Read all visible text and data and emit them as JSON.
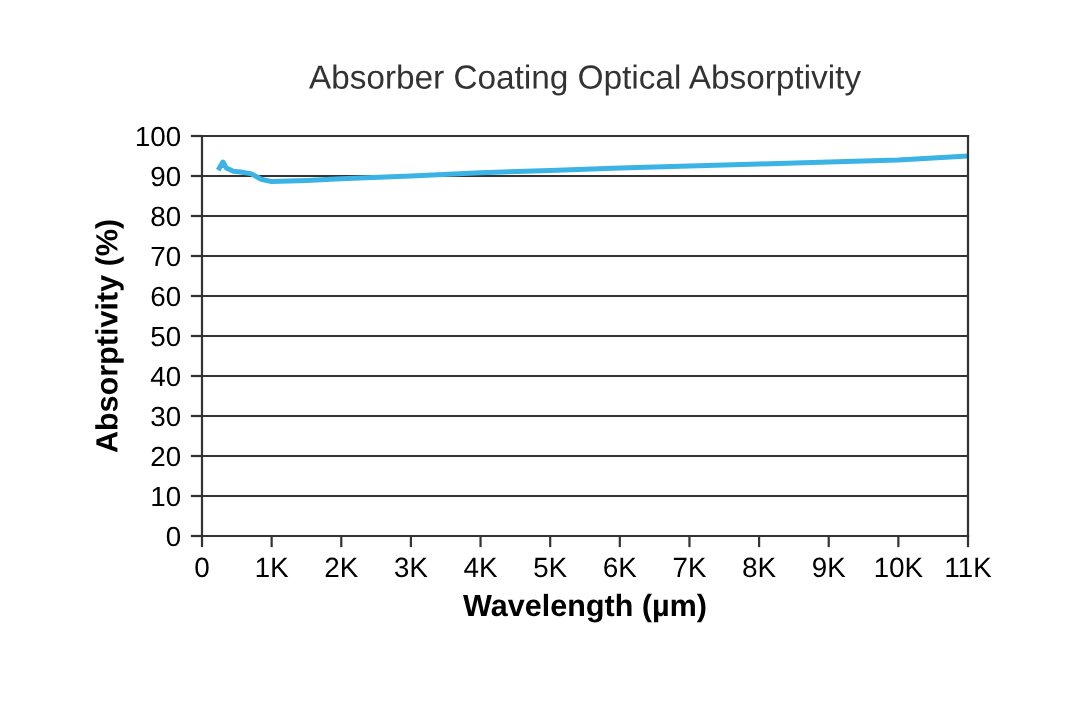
{
  "chart_data": {
    "type": "line",
    "title": "Absorber Coating Optical Absorptivity",
    "xlabel": "Wavelength (µm)",
    "ylabel": "Absorptivity (%)",
    "x": [
      250,
      300,
      350,
      450,
      550,
      700,
      850,
      1000,
      1500,
      2000,
      3000,
      4000,
      5000,
      6000,
      7000,
      8000,
      9000,
      10000,
      11000
    ],
    "series": [
      {
        "color": "#3bb4e5",
        "values": [
          92,
          93.5,
          92,
          91.2,
          91,
          90.6,
          89.2,
          88.6,
          88.9,
          89.3,
          90,
          90.8,
          91.4,
          92,
          92.5,
          93,
          93.5,
          94,
          95
        ]
      }
    ],
    "xlim": [
      0,
      11000
    ],
    "ylim": [
      0,
      100
    ],
    "xticks": [
      0,
      {
        "value": 1000,
        "label": "1K"
      },
      {
        "value": 2000,
        "label": "2K"
      },
      {
        "value": 3000,
        "label": "3K"
      },
      {
        "value": 4000,
        "label": "4K"
      },
      {
        "value": 5000,
        "label": "5K"
      },
      {
        "value": 6000,
        "label": "6K"
      },
      {
        "value": 7000,
        "label": "7K"
      },
      {
        "value": 8000,
        "label": "8K"
      },
      {
        "value": 9000,
        "label": "9K"
      },
      {
        "value": 10000,
        "label": "10K"
      },
      {
        "value": 11000,
        "label": "11K"
      }
    ],
    "yticks": [
      0,
      10,
      20,
      30,
      40,
      50,
      60,
      70,
      80,
      90,
      100
    ],
    "grid": "y",
    "marker": "none",
    "line_style": "solid",
    "legend": false
  }
}
